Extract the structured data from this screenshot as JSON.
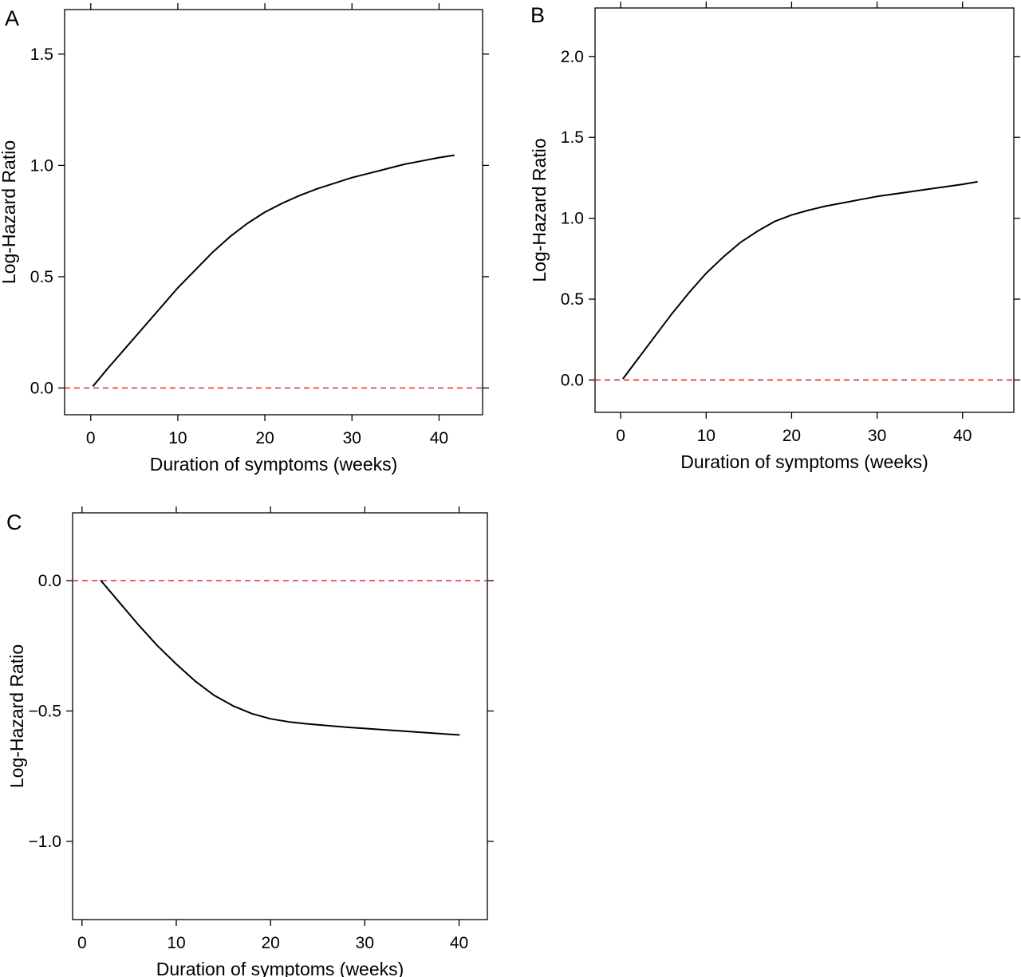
{
  "chart_data": [
    {
      "panel": "A",
      "type": "line",
      "xlabel": "Duration of symptoms (weeks)",
      "ylabel": "Log-Hazard Ratio",
      "xlim": [
        -3,
        45
      ],
      "ylim": [
        -0.12,
        1.7
      ],
      "xticks": [
        0,
        10,
        20,
        30,
        40
      ],
      "yticks": [
        0.0,
        0.5,
        1.0,
        1.5
      ],
      "xtick_labels": [
        "0",
        "10",
        "20",
        "30",
        "40"
      ],
      "ytick_labels": [
        "0.0",
        "0.5",
        "1.0",
        "1.5"
      ],
      "grid": false,
      "reference_line": {
        "y": 0,
        "color": "#e8292e",
        "style": "dashed"
      },
      "series": [
        {
          "color": "#000000",
          "x": [
            0.3,
            2,
            4,
            6,
            8,
            10,
            12,
            14,
            16,
            18,
            20,
            22,
            24,
            26,
            28,
            30,
            32,
            34,
            36,
            38,
            40,
            41.7
          ],
          "y": [
            0.01,
            0.09,
            0.18,
            0.27,
            0.36,
            0.45,
            0.53,
            0.61,
            0.68,
            0.74,
            0.79,
            0.83,
            0.865,
            0.895,
            0.92,
            0.945,
            0.965,
            0.985,
            1.005,
            1.02,
            1.035,
            1.045
          ]
        }
      ]
    },
    {
      "panel": "B",
      "type": "line",
      "xlabel": "Duration of symptoms (weeks)",
      "ylabel": "Log-Hazard Ratio",
      "xlim": [
        -3,
        46
      ],
      "ylim": [
        -0.2,
        2.3
      ],
      "xticks": [
        0,
        10,
        20,
        30,
        40
      ],
      "yticks": [
        0.0,
        0.5,
        1.0,
        1.5,
        2.0
      ],
      "xtick_labels": [
        "0",
        "10",
        "20",
        "30",
        "40"
      ],
      "ytick_labels": [
        "0.0",
        "0.5",
        "1.0",
        "1.5",
        "2.0"
      ],
      "grid": false,
      "reference_line": {
        "y": 0,
        "color": "#e8292e",
        "style": "dashed"
      },
      "series": [
        {
          "color": "#000000",
          "x": [
            0.3,
            2,
            4,
            6,
            8,
            10,
            12,
            14,
            16,
            18,
            20,
            22,
            24,
            26,
            28,
            30,
            32,
            34,
            36,
            38,
            40,
            41.7
          ],
          "y": [
            0.01,
            0.13,
            0.27,
            0.41,
            0.54,
            0.66,
            0.76,
            0.85,
            0.92,
            0.98,
            1.02,
            1.05,
            1.075,
            1.095,
            1.115,
            1.135,
            1.15,
            1.165,
            1.18,
            1.195,
            1.21,
            1.225
          ]
        }
      ]
    },
    {
      "panel": "C",
      "type": "line",
      "xlabel": "Duration of symptoms (weeks)",
      "ylabel": "Log-Hazard Ratio",
      "xlim": [
        -1,
        43
      ],
      "ylim": [
        -1.3,
        0.26
      ],
      "xticks": [
        0,
        10,
        20,
        30,
        40
      ],
      "yticks": [
        -1.0,
        -0.5,
        0.0
      ],
      "xtick_labels": [
        "0",
        "10",
        "20",
        "30",
        "40"
      ],
      "ytick_labels": [
        "−1.0",
        "−0.5",
        "0.0"
      ],
      "grid": false,
      "reference_line": {
        "y": 0,
        "color": "#e8292e",
        "style": "dashed"
      },
      "series": [
        {
          "color": "#000000",
          "x": [
            2,
            4,
            6,
            8,
            10,
            12,
            14,
            16,
            18,
            20,
            22,
            24,
            26,
            28,
            30,
            32,
            34,
            36,
            38,
            40
          ],
          "y": [
            0.0,
            -0.085,
            -0.17,
            -0.25,
            -0.32,
            -0.385,
            -0.44,
            -0.48,
            -0.51,
            -0.53,
            -0.542,
            -0.55,
            -0.556,
            -0.562,
            -0.567,
            -0.572,
            -0.577,
            -0.582,
            -0.587,
            -0.592
          ]
        }
      ]
    }
  ]
}
